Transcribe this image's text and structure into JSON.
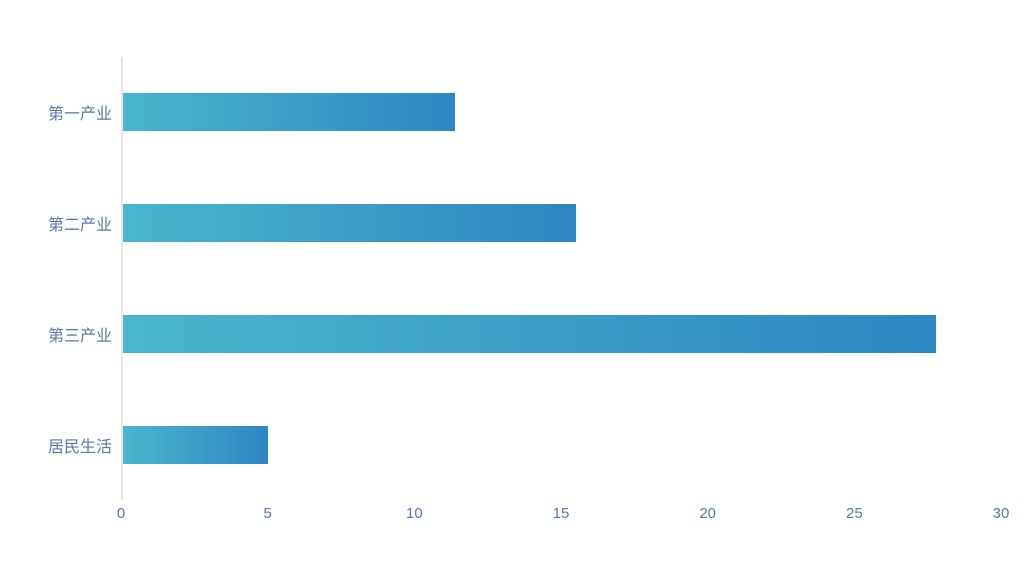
{
  "chart_data": {
    "type": "bar",
    "orientation": "horizontal",
    "title": "",
    "xlabel": "",
    "ylabel": "",
    "categories": [
      "第一产业",
      "第二产业",
      "第三产业",
      "居民生活"
    ],
    "values": [
      11.4,
      15.5,
      27.8,
      5
    ],
    "xlim": [
      0,
      30
    ],
    "x_ticks": [
      0,
      5,
      10,
      15,
      20,
      25,
      30
    ],
    "grid": false,
    "legend": false,
    "colors": {
      "bar_gradient_start": "#4ab6ce",
      "bar_gradient_end": "#2e86c2",
      "axis_label": "#5678ad",
      "axis_line": "#e6e6e6",
      "background": "#ffffff"
    }
  }
}
